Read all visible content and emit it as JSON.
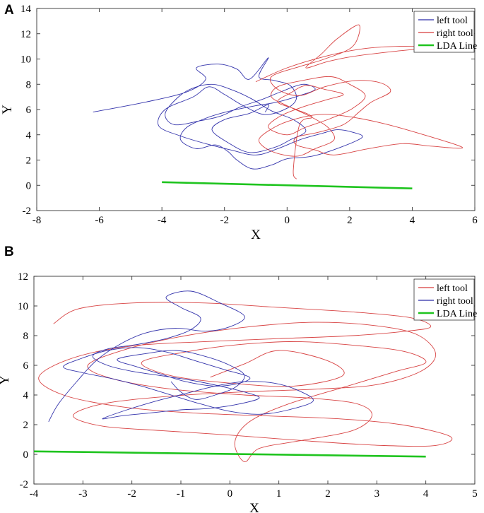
{
  "chart_data": [
    {
      "panel_label": "A",
      "type": "line",
      "title": "",
      "xlabel": "X",
      "ylabel": "Y",
      "xlim": [
        -8,
        6
      ],
      "ylim": [
        -2,
        14
      ],
      "xticks": [
        -8,
        -6,
        -4,
        -2,
        0,
        2,
        4,
        6
      ],
      "yticks": [
        -2,
        0,
        2,
        4,
        6,
        8,
        10,
        12,
        14
      ],
      "grid": false,
      "legend": {
        "location": "top-right",
        "entries": [
          "left tool",
          "right tool",
          "LDA Line"
        ]
      },
      "series": [
        {
          "name": "left tool",
          "color": "#2a2aa8",
          "description": "tangled trajectory",
          "x": [
            -6.2,
            -4.5,
            -3.2,
            -2.6,
            -2.9,
            -2.2,
            -1.6,
            -1.2,
            -0.6,
            -0.9,
            -0.4,
            0.1,
            0.3,
            0.0,
            -0.7,
            -1.4,
            -2.0,
            -2.5,
            -3.0,
            -3.9,
            -4.1,
            -3.4,
            -2.6,
            -1.8,
            -1.0,
            -0.3,
            0.4,
            1.1,
            1.6,
            2.1,
            2.4,
            1.7,
            0.8,
            0.0,
            -0.5,
            -1.1,
            -1.6,
            -1.9,
            -2.3,
            -2.9,
            -3.4,
            -3.2,
            -2.5,
            -1.8,
            -1.0,
            -0.3,
            0.4,
            0.9,
            0.5,
            -0.2,
            -0.8,
            -1.5,
            -2.1,
            -2.8,
            -3.6,
            -3.9,
            -3.6,
            -3.1,
            -2.4,
            -1.7,
            -1.1,
            -0.5,
            0.2,
            0.6,
            0.1,
            -0.4,
            -1.2,
            -1.9,
            -2.4,
            -2.0,
            -1.2,
            -0.6,
            -0.7
          ],
          "y": [
            5.8,
            6.6,
            7.4,
            8.4,
            9.3,
            9.6,
            9.2,
            8.4,
            10.1,
            8.6,
            8.3,
            7.9,
            6.9,
            6.1,
            5.6,
            6.3,
            7.2,
            7.8,
            7.0,
            6.0,
            4.7,
            3.9,
            3.3,
            2.8,
            2.4,
            2.9,
            3.6,
            4.1,
            4.4,
            4.2,
            3.8,
            3.0,
            2.3,
            2.1,
            1.6,
            1.3,
            2.0,
            2.7,
            3.2,
            2.9,
            3.6,
            4.6,
            5.4,
            5.9,
            6.3,
            6.6,
            7.1,
            7.6,
            8.0,
            7.4,
            6.8,
            6.2,
            5.5,
            5.1,
            4.8,
            5.6,
            6.7,
            7.6,
            8.0,
            7.5,
            6.8,
            5.9,
            5.2,
            4.3,
            3.6,
            3.0,
            2.6,
            3.4,
            4.4,
            5.2,
            5.7,
            6.4,
            5.8
          ]
        },
        {
          "name": "right tool",
          "color": "#d63a3a",
          "description": "tangled trajectory",
          "x": [
            -1.0,
            0.0,
            1.2,
            2.4,
            3.6,
            4.5,
            3.4,
            2.1,
            1.3,
            0.6,
            1.1,
            1.6,
            2.3,
            2.1,
            1.2,
            0.4,
            -0.5,
            -0.3,
            0.4,
            1.2,
            2.2,
            3.0,
            3.3,
            2.7,
            2.3,
            1.8,
            1.0,
            0.3,
            0.3,
            0.9,
            1.5,
            2.6,
            3.7,
            4.6,
            5.6,
            4.1,
            2.9,
            1.8,
            1.0,
            0.2,
            -0.4,
            -0.9,
            -0.5,
            0.3,
            0.9,
            1.5,
            1.3,
            0.7,
            0.0,
            -0.5,
            -0.3,
            0.5,
            1.4,
            2.0,
            2.5,
            2.1,
            1.4,
            0.6,
            0.0,
            -0.6,
            -0.2,
            0.5,
            1.3,
            1.8,
            1.2,
            0.6,
            0.1,
            -0.3,
            0.3,
            0.8,
            0.4,
            0.2,
            0.3
          ],
          "y": [
            8.2,
            9.3,
            10.2,
            10.8,
            11.0,
            10.9,
            10.6,
            10.2,
            9.8,
            9.3,
            10.4,
            11.6,
            12.7,
            11.0,
            10.0,
            9.4,
            8.6,
            7.6,
            7.1,
            7.8,
            8.3,
            8.1,
            7.4,
            6.6,
            5.8,
            4.8,
            4.2,
            3.8,
            3.2,
            2.8,
            2.4,
            2.9,
            3.3,
            3.1,
            3.0,
            4.2,
            5.0,
            5.5,
            5.6,
            5.2,
            4.6,
            3.6,
            2.7,
            2.3,
            2.9,
            3.6,
            4.6,
            5.5,
            6.3,
            7.0,
            7.8,
            8.3,
            8.6,
            8.0,
            7.1,
            6.1,
            5.3,
            4.6,
            4.0,
            4.6,
            5.5,
            6.2,
            6.8,
            7.2,
            7.6,
            7.9,
            7.3,
            6.6,
            6.0,
            5.4,
            4.8,
            1.2,
            0.5
          ]
        },
        {
          "name": "LDA Line",
          "color": "#1fc41f",
          "x": [
            -4,
            4
          ],
          "y": [
            0.25,
            -0.25
          ]
        }
      ]
    },
    {
      "panel_label": "B",
      "type": "line",
      "title": "",
      "xlabel": "X",
      "ylabel": "Y",
      "xlim": [
        -4,
        5
      ],
      "ylim": [
        -2,
        12
      ],
      "xticks": [
        -4,
        -3,
        -2,
        -1,
        0,
        1,
        2,
        3,
        4,
        5
      ],
      "yticks": [
        -2,
        0,
        2,
        4,
        6,
        8,
        10,
        12
      ],
      "grid": false,
      "legend": {
        "location": "top-right",
        "entries": [
          "left tool",
          "right tool",
          "LDA Line"
        ]
      },
      "series": [
        {
          "name": "left tool",
          "color": "#d63a3a",
          "description": "tangled trajectory",
          "x": [
            -3.6,
            -3.1,
            -2.0,
            -0.5,
            1.0,
            2.5,
            3.7,
            4.1,
            3.6,
            2.5,
            1.0,
            -0.5,
            -2.0,
            -3.2,
            -3.9,
            -3.4,
            -2.2,
            -0.8,
            0.7,
            2.2,
            3.5,
            4.5,
            4.2,
            3.1,
            1.6,
            0.0,
            -1.4,
            -2.6,
            -3.2,
            -2.6,
            -1.3,
            0.2,
            1.8,
            3.0,
            3.9,
            4.2,
            3.8,
            2.9,
            1.7,
            0.4,
            -0.9,
            -2.1,
            -2.9,
            -2.4,
            -1.2,
            0.3,
            1.6,
            2.6,
            2.9,
            2.5,
            1.4,
            0.6,
            0.3,
            0.1,
            0.4,
            1.2,
            2.4,
            3.4,
            4.0,
            3.6,
            2.7,
            1.4,
            0.2,
            -0.9,
            -1.8,
            -1.2,
            0.0,
            1.3,
            2.3,
            2.0,
            1.0,
            0.3,
            -0.4
          ],
          "y": [
            8.8,
            9.8,
            10.2,
            10.2,
            9.9,
            9.6,
            9.2,
            8.6,
            8.3,
            8.0,
            7.8,
            7.6,
            7.3,
            6.5,
            5.2,
            4.0,
            3.2,
            2.8,
            2.6,
            2.4,
            2.0,
            1.2,
            0.6,
            0.6,
            0.9,
            1.3,
            1.6,
            1.9,
            2.6,
            3.4,
            3.9,
            4.2,
            4.4,
            4.7,
            5.6,
            6.8,
            8.1,
            8.7,
            8.9,
            8.6,
            8.0,
            7.1,
            6.0,
            5.1,
            4.4,
            4.0,
            3.8,
            3.4,
            2.6,
            1.6,
            0.9,
            0.4,
            -0.5,
            0.8,
            2.2,
            3.4,
            4.6,
            5.6,
            6.2,
            6.9,
            7.3,
            7.6,
            7.4,
            6.9,
            6.2,
            5.3,
            4.8,
            4.6,
            5.3,
            6.3,
            7.0,
            6.1,
            5.2
          ]
        },
        {
          "name": "right tool",
          "color": "#2a2aa8",
          "description": "tangled trajectory",
          "x": [
            -3.7,
            -3.5,
            -3.1,
            -2.7,
            -2.2,
            -1.7,
            -1.1,
            -0.5,
            0.0,
            0.3,
            -0.2,
            -0.8,
            -1.3,
            -1.0,
            -0.6,
            -0.8,
            -1.3,
            -1.9,
            -2.5,
            -2.8,
            -2.5,
            -2.0,
            -1.4,
            -0.8,
            -0.2,
            0.3,
            0.6,
            0.2,
            -0.4,
            -1.0,
            -1.6,
            -2.2,
            -2.6,
            -2.1,
            -1.5,
            -0.9,
            -0.3,
            0.3,
            0.9,
            1.4,
            1.7,
            1.2,
            0.6,
            0.0,
            -0.6,
            -1.2,
            -1.8,
            -2.4,
            -3.0,
            -3.4,
            -3.0,
            -2.5,
            -1.9,
            -1.3,
            -0.7,
            -0.1,
            0.4,
            0.2,
            -0.3,
            -0.9,
            -1.4,
            -1.9,
            -2.3,
            -1.7,
            -1.1,
            -0.5,
            0.0,
            0.3,
            0.1,
            -0.3,
            -0.7,
            -1.0,
            -1.2
          ],
          "y": [
            2.2,
            3.4,
            5.0,
            6.4,
            7.5,
            8.2,
            8.5,
            8.3,
            8.6,
            9.3,
            10.2,
            11.0,
            10.6,
            9.9,
            9.2,
            8.4,
            7.8,
            7.4,
            7.1,
            6.6,
            6.0,
            5.6,
            5.3,
            5.0,
            4.6,
            4.2,
            3.8,
            3.4,
            3.1,
            3.0,
            2.8,
            2.6,
            2.4,
            3.0,
            3.6,
            4.1,
            4.6,
            4.9,
            4.8,
            4.3,
            3.6,
            3.0,
            2.7,
            2.9,
            3.4,
            4.0,
            4.6,
            5.1,
            5.5,
            5.9,
            6.5,
            7.0,
            7.2,
            6.9,
            6.3,
            5.7,
            5.2,
            4.8,
            4.6,
            4.9,
            5.4,
            5.9,
            6.4,
            6.8,
            7.0,
            6.6,
            6.0,
            5.3,
            4.5,
            4.0,
            3.7,
            4.2,
            4.9
          ]
        },
        {
          "name": "LDA Line",
          "color": "#1fc41f",
          "x": [
            -4,
            4
          ],
          "y": [
            0.2,
            -0.15
          ]
        }
      ]
    }
  ]
}
